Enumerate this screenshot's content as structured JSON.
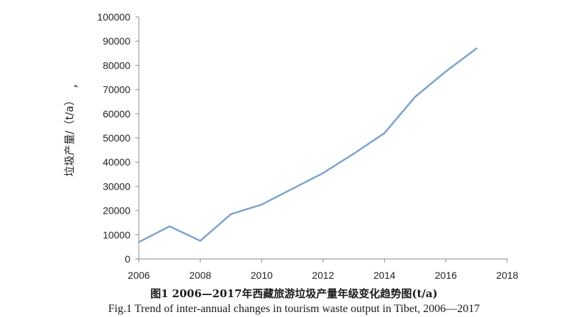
{
  "chart_data": {
    "type": "line",
    "title": "",
    "xlabel": "",
    "ylabel": "垃圾产量/（t/a）",
    "ylabel_mark": "，",
    "xlim": [
      2006,
      2018
    ],
    "ylim": [
      0,
      100000
    ],
    "x_ticks": [
      2006,
      2008,
      2010,
      2012,
      2014,
      2016,
      2018
    ],
    "y_ticks": [
      0,
      10000,
      20000,
      30000,
      40000,
      50000,
      60000,
      70000,
      80000,
      90000,
      100000
    ],
    "grid": false,
    "legend": "none",
    "series": [
      {
        "color": "#7ba3d1",
        "x": [
          2006,
          2007,
          2008,
          2009,
          2010,
          2011,
          2012,
          2013,
          2014,
          2015,
          2016,
          2017
        ],
        "y": [
          7000,
          13500,
          7500,
          18500,
          22500,
          29000,
          35500,
          43500,
          52000,
          67000,
          77500,
          87000
        ]
      }
    ]
  },
  "captions": {
    "chinese": "图1 2006—2017年西藏旅游垃圾产量年级变化趋势图(t/a)",
    "english": "Fig.1  Trend of inter-annual changes in tourism waste output in Tibet, 2006—2017"
  }
}
